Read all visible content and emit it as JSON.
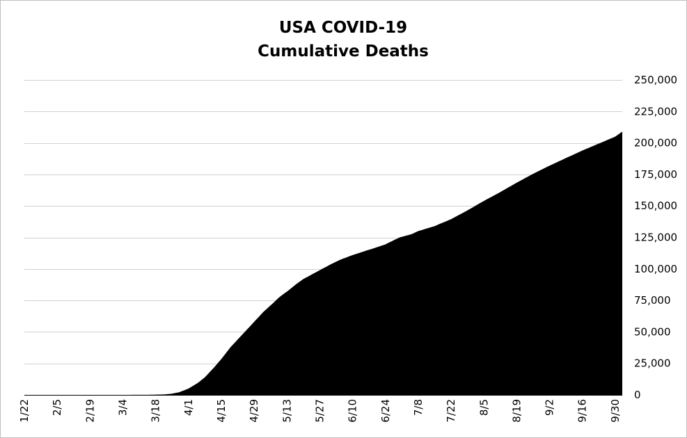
{
  "chart_data": {
    "type": "area",
    "title": [
      "USA COVID-19",
      "Cumulative Deaths"
    ],
    "xlabel": "",
    "ylabel": "",
    "ylim": [
      0,
      250000
    ],
    "yticks": [
      "0",
      "25,000",
      "50,000",
      "75,000",
      "100,000",
      "125,000",
      "150,000",
      "175,000",
      "200,000",
      "225,000",
      "250,000"
    ],
    "ytick_values": [
      0,
      25000,
      50000,
      75000,
      100000,
      125000,
      150000,
      175000,
      200000,
      225000,
      250000
    ],
    "y_axis_position": "right",
    "grid": true,
    "legend": "none",
    "xlim": [
      "2020-01-22",
      "2020-10-03"
    ],
    "xticks": [
      "1/22",
      "2/5",
      "2/19",
      "3/4",
      "3/18",
      "4/1",
      "4/15",
      "4/29",
      "5/13",
      "5/27",
      "6/10",
      "6/24",
      "7/8",
      "7/22",
      "8/5",
      "8/19",
      "9/2",
      "9/16",
      "9/30"
    ],
    "xtick_dates": [
      "2020-01-22",
      "2020-02-05",
      "2020-02-19",
      "2020-03-04",
      "2020-03-18",
      "2020-04-01",
      "2020-04-15",
      "2020-04-29",
      "2020-05-13",
      "2020-05-27",
      "2020-06-10",
      "2020-06-24",
      "2020-07-08",
      "2020-07-22",
      "2020-08-05",
      "2020-08-19",
      "2020-09-02",
      "2020-09-16",
      "2020-09-30"
    ],
    "fill_color": "#000000",
    "series": [
      {
        "x": [
          "2020-01-22",
          "2020-03-01",
          "2020-03-15",
          "2020-03-22",
          "2020-03-25",
          "2020-03-28",
          "2020-04-01",
          "2020-04-05",
          "2020-04-08",
          "2020-04-12",
          "2020-04-15",
          "2020-04-19",
          "2020-04-22",
          "2020-04-26",
          "2020-04-29",
          "2020-05-03",
          "2020-05-06",
          "2020-05-10",
          "2020-05-13",
          "2020-05-17",
          "2020-05-20",
          "2020-05-24",
          "2020-05-27",
          "2020-06-01",
          "2020-06-05",
          "2020-06-10",
          "2020-06-15",
          "2020-06-20",
          "2020-06-24",
          "2020-06-30",
          "2020-07-05",
          "2020-07-08",
          "2020-07-15",
          "2020-07-22",
          "2020-07-29",
          "2020-08-05",
          "2020-08-12",
          "2020-08-19",
          "2020-08-26",
          "2020-09-02",
          "2020-09-09",
          "2020-09-16",
          "2020-09-23",
          "2020-09-30",
          "2020-10-03"
        ],
        "values": [
          0,
          0,
          60,
          400,
          1000,
          2100,
          5000,
          9500,
          14000,
          22000,
          28500,
          38000,
          44000,
          52000,
          58000,
          66000,
          71000,
          78000,
          82000,
          88000,
          92000,
          96000,
          99000,
          104000,
          107500,
          111000,
          114000,
          117000,
          119500,
          125000,
          127500,
          130000,
          134000,
          139500,
          146500,
          154000,
          161000,
          168500,
          175500,
          182000,
          188000,
          194000,
          199500,
          205000,
          209000
        ]
      }
    ]
  }
}
